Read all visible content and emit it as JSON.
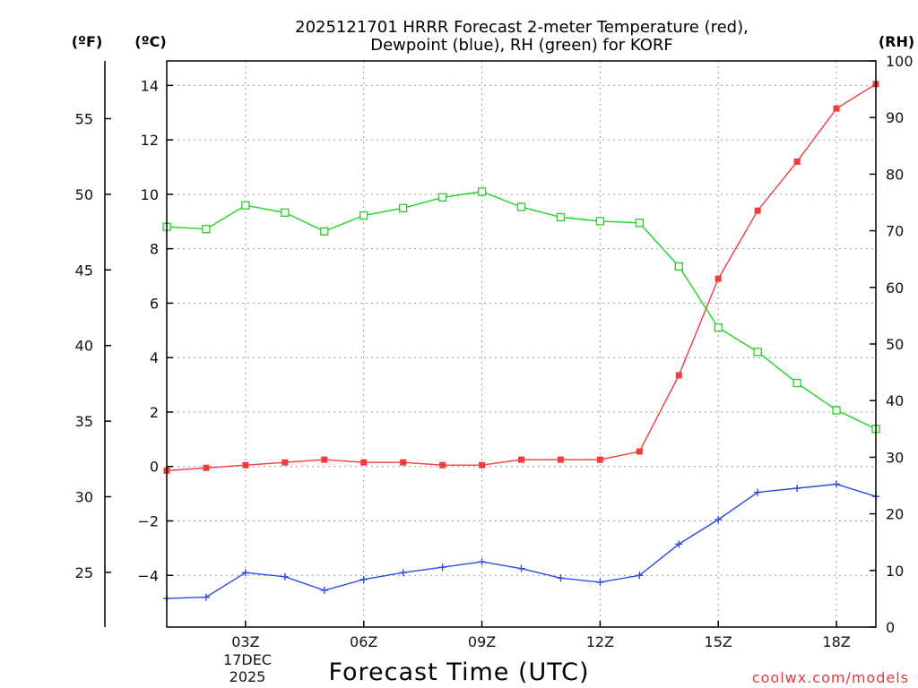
{
  "chart_data": {
    "type": "line",
    "title_line1": "2025121701 HRRR Forecast 2-meter Temperature (red),",
    "title_line2": "Dewpoint (blue), RH (green) for KORF",
    "xlabel": "Forecast Time (UTC)",
    "credit": "coolwx.com/models",
    "date_label_1": "17DEC",
    "date_label_2": "2025",
    "unit_f": "(ºF)",
    "unit_c": "(ºC)",
    "unit_rh": "(RH)",
    "x_hours": [
      1,
      2,
      3,
      4,
      5,
      6,
      7,
      8,
      9,
      10,
      11,
      12,
      13,
      14,
      15,
      16,
      17,
      18,
      19
    ],
    "xlim": [
      1,
      19
    ],
    "x_ticks": [
      {
        "hour": 3,
        "label": "03Z"
      },
      {
        "hour": 6,
        "label": "06Z"
      },
      {
        "hour": 9,
        "label": "09Z"
      },
      {
        "hour": 12,
        "label": "12Z"
      },
      {
        "hour": 15,
        "label": "15Z"
      },
      {
        "hour": 18,
        "label": "18Z"
      }
    ],
    "ylim_c": [
      -5.9,
      14.9
    ],
    "yticks_c": [
      -4,
      -2,
      0,
      2,
      4,
      6,
      8,
      10,
      12,
      14
    ],
    "ytick_labels_c": [
      "−4",
      "−2",
      "0",
      "2",
      "4",
      "6",
      "8",
      "10",
      "12",
      "14"
    ],
    "yticks_f": [
      25,
      30,
      35,
      40,
      45,
      50,
      55
    ],
    "ytick_labels_f": [
      "25",
      "30",
      "35",
      "40",
      "45",
      "50",
      "55"
    ],
    "ylim_rh": [
      0,
      100
    ],
    "yticks_rh": [
      0,
      10,
      20,
      30,
      40,
      50,
      60,
      70,
      80,
      90,
      100
    ],
    "ytick_labels_rh": [
      "0",
      "10",
      "20",
      "30",
      "40",
      "50",
      "60",
      "70",
      "80",
      "90",
      "100"
    ],
    "series": [
      {
        "name": "Temperature",
        "axis": "C",
        "color": "#f03c3c",
        "marker": "filled-square",
        "values": [
          -0.15,
          -0.05,
          0.05,
          0.15,
          0.25,
          0.15,
          0.15,
          0.05,
          0.05,
          0.25,
          0.25,
          0.25,
          0.55,
          3.35,
          6.9,
          9.4,
          11.2,
          13.15,
          14.05
        ]
      },
      {
        "name": "Dewpoint",
        "axis": "C",
        "color": "#2a4bea",
        "marker": "plus",
        "values": [
          -4.85,
          -4.8,
          -3.9,
          -4.05,
          -4.55,
          -4.15,
          -3.9,
          -3.7,
          -3.5,
          -3.75,
          -4.1,
          -4.25,
          -4.0,
          -2.85,
          -1.95,
          -0.95,
          -0.8,
          -0.65,
          -1.1
        ]
      },
      {
        "name": "RH",
        "axis": "RH",
        "color": "#1ed41e",
        "marker": "open-square",
        "values": [
          70.7,
          70.3,
          74.5,
          73.2,
          69.9,
          72.7,
          74.0,
          75.9,
          76.9,
          74.2,
          72.4,
          71.7,
          71.4,
          63.7,
          52.9,
          48.6,
          43.1,
          38.3,
          35.0
        ]
      }
    ]
  }
}
